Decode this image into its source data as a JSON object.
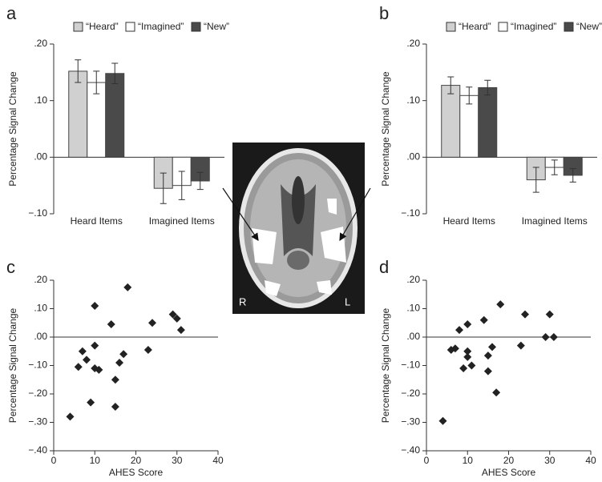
{
  "chart_data": [
    {
      "type": "bar",
      "label": "a",
      "ylabel": "Percentage Signal Change",
      "categories": [
        "Heard Items",
        "Imagined Items"
      ],
      "series": [
        {
          "name": "“Heard”",
          "color": "#d0d0d0",
          "values": [
            0.152,
            -0.055
          ],
          "errors": [
            0.02,
            0.027
          ]
        },
        {
          "name": "“Imagined”",
          "color": "#ffffff",
          "values": [
            0.132,
            -0.05
          ],
          "errors": [
            0.02,
            0.025
          ]
        },
        {
          "name": "“New”",
          "color": "#4a4a4a",
          "values": [
            0.148,
            -0.042
          ],
          "errors": [
            0.018,
            0.015
          ]
        }
      ],
      "ylim": [
        -0.1,
        0.2
      ],
      "yticks": [
        {
          "value": 0.2,
          "label": ".20"
        },
        {
          "value": 0.1,
          "label": ".10"
        },
        {
          "value": 0,
          "label": ".00"
        },
        {
          "value": -0.1,
          "label": "−.10"
        }
      ]
    },
    {
      "type": "bar",
      "label": "b",
      "ylabel": "Percentage Signal Change",
      "categories": [
        "Heard Items",
        "Imagined Items"
      ],
      "series": [
        {
          "name": "“Heard”",
          "color": "#d0d0d0",
          "values": [
            0.127,
            -0.04
          ],
          "errors": [
            0.015,
            0.022
          ]
        },
        {
          "name": "“Imagined”",
          "color": "#ffffff",
          "values": [
            0.109,
            -0.018
          ],
          "errors": [
            0.015,
            0.013
          ]
        },
        {
          "name": "“New”",
          "color": "#4a4a4a",
          "values": [
            0.123,
            -0.032
          ],
          "errors": [
            0.013,
            0.012
          ]
        }
      ],
      "ylim": [
        -0.1,
        0.2
      ],
      "yticks": [
        {
          "value": 0.2,
          "label": ".20"
        },
        {
          "value": 0.1,
          "label": ".10"
        },
        {
          "value": 0,
          "label": ".00"
        },
        {
          "value": -0.1,
          "label": "−.10"
        }
      ]
    },
    {
      "type": "scatter",
      "label": "c",
      "ylabel": "Percentage Signal Change",
      "xlabel": "AHES Score",
      "color": "#222222",
      "x": [
        4,
        6,
        7,
        8,
        9,
        10,
        10,
        10,
        11,
        14,
        15,
        15,
        16,
        17,
        18,
        23,
        24,
        29,
        30,
        31
      ],
      "values": [
        -0.28,
        -0.105,
        -0.05,
        -0.08,
        -0.23,
        0.11,
        -0.03,
        -0.11,
        -0.115,
        0.045,
        -0.15,
        -0.245,
        -0.09,
        -0.06,
        0.175,
        -0.045,
        0.05,
        0.08,
        0.065,
        0.025
      ],
      "xlim": [
        0,
        40
      ],
      "xticks": [
        0,
        10,
        20,
        30,
        40
      ],
      "ylim": [
        -0.4,
        0.2
      ],
      "yticks": [
        {
          "value": 0.2,
          "label": ".20"
        },
        {
          "value": 0.1,
          "label": ".10"
        },
        {
          "value": 0,
          "label": ".00"
        },
        {
          "value": -0.1,
          "label": "−.10"
        },
        {
          "value": -0.2,
          "label": "−.20"
        },
        {
          "value": -0.3,
          "label": "−.30"
        },
        {
          "value": -0.4,
          "label": "−.40"
        }
      ]
    },
    {
      "type": "scatter",
      "label": "d",
      "ylabel": "Percentage Signal Change",
      "xlabel": "AHES Score",
      "color": "#222222",
      "x": [
        4,
        6,
        7,
        8,
        9,
        10,
        10,
        10,
        11,
        14,
        15,
        15,
        16,
        17,
        18,
        23,
        24,
        29,
        30,
        31
      ],
      "values": [
        -0.295,
        -0.045,
        -0.04,
        0.025,
        -0.11,
        0.045,
        -0.05,
        -0.07,
        -0.1,
        0.06,
        -0.065,
        -0.12,
        -0.035,
        -0.195,
        0.115,
        -0.03,
        0.08,
        0,
        0.08,
        0
      ],
      "xlim": [
        0,
        40
      ],
      "xticks": [
        0,
        10,
        20,
        30,
        40
      ],
      "ylim": [
        -0.4,
        0.2
      ],
      "yticks": [
        {
          "value": 0.2,
          "label": ".20"
        },
        {
          "value": 0.1,
          "label": ".10"
        },
        {
          "value": 0,
          "label": ".00"
        },
        {
          "value": -0.1,
          "label": "−.10"
        },
        {
          "value": -0.2,
          "label": "−.20"
        },
        {
          "value": -0.3,
          "label": "−.30"
        },
        {
          "value": -0.4,
          "label": "−.40"
        }
      ]
    }
  ],
  "brain_image": {
    "left_label": "R",
    "right_label": "L"
  }
}
